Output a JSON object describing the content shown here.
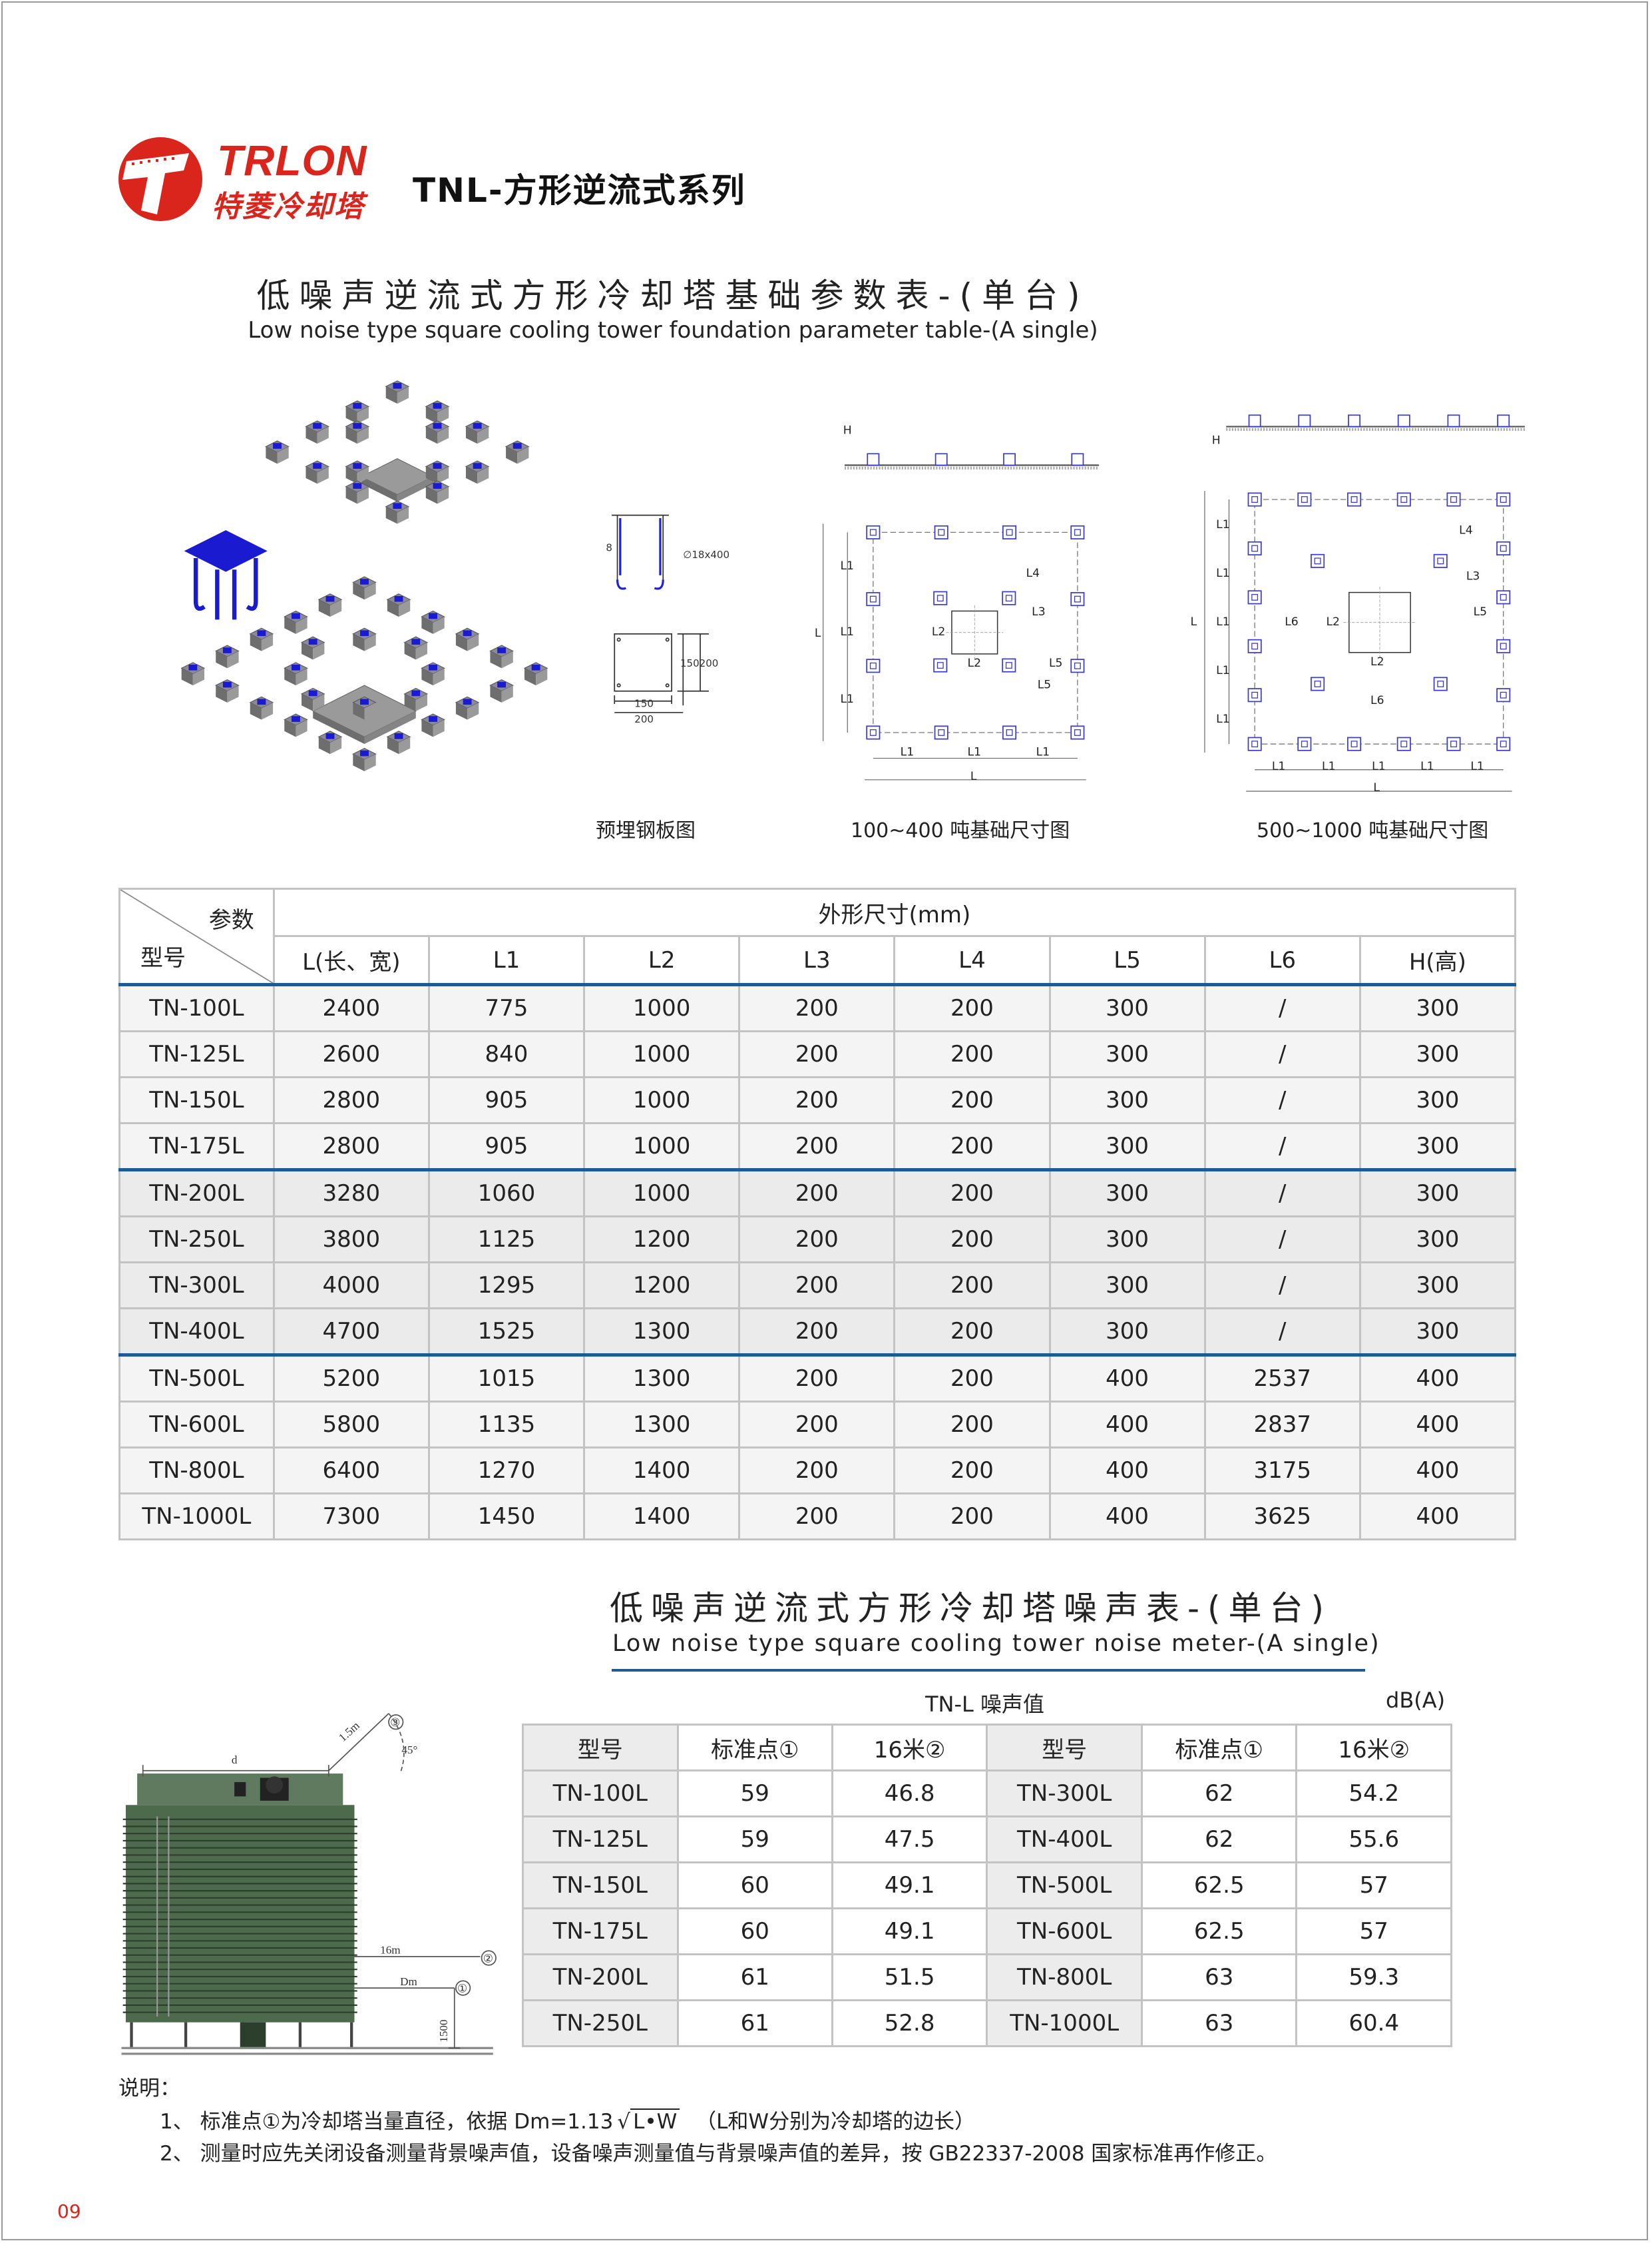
{
  "brand": {
    "name_en": "TRLON",
    "name_cn": "特菱冷却塔",
    "color": "#d9251c"
  },
  "series_title": "TNL-方形逆流式系列",
  "foundation": {
    "title_cn": "低噪声逆流式方形冷却塔基础参数表-(单台)",
    "title_en": "Low noise type square cooling tower  foundation parameter table-(A single)",
    "captions": [
      "预埋钢板图",
      "100~400 吨基础尺寸图",
      "500~1000 吨基础尺寸图"
    ],
    "plate_labels": {
      "phi": "∅18x400",
      "side": "150200",
      "w1": "150",
      "w2": "200",
      "h": "8"
    },
    "plan_labels": {
      "H": "H",
      "L": "L",
      "L1": "L1",
      "L2": "L2",
      "L3": "L3",
      "L4": "L4",
      "L5": "L5",
      "L6": "L6"
    },
    "table": {
      "corner_top": "参数",
      "corner_bottom": "型号",
      "group_header": "外形尺寸(mm)",
      "columns": [
        "L(长、宽)",
        "L1",
        "L2",
        "L3",
        "L4",
        "L5",
        "L6",
        "H(高)"
      ],
      "rows": [
        [
          "TN-100L",
          "2400",
          "775",
          "1000",
          "200",
          "200",
          "300",
          "/",
          "300"
        ],
        [
          "TN-125L",
          "2600",
          "840",
          "1000",
          "200",
          "200",
          "300",
          "/",
          "300"
        ],
        [
          "TN-150L",
          "2800",
          "905",
          "1000",
          "200",
          "200",
          "300",
          "/",
          "300"
        ],
        [
          "TN-175L",
          "2800",
          "905",
          "1000",
          "200",
          "200",
          "300",
          "/",
          "300"
        ],
        [
          "TN-200L",
          "3280",
          "1060",
          "1000",
          "200",
          "200",
          "300",
          "/",
          "300"
        ],
        [
          "TN-250L",
          "3800",
          "1125",
          "1200",
          "200",
          "200",
          "300",
          "/",
          "300"
        ],
        [
          "TN-300L",
          "4000",
          "1295",
          "1200",
          "200",
          "200",
          "300",
          "/",
          "300"
        ],
        [
          "TN-400L",
          "4700",
          "1525",
          "1300",
          "200",
          "200",
          "300",
          "/",
          "300"
        ],
        [
          "TN-500L",
          "5200",
          "1015",
          "1300",
          "200",
          "200",
          "400",
          "2537",
          "400"
        ],
        [
          "TN-600L",
          "5800",
          "1135",
          "1300",
          "200",
          "200",
          "400",
          "2837",
          "400"
        ],
        [
          "TN-800L",
          "6400",
          "1270",
          "1400",
          "200",
          "200",
          "400",
          "3175",
          "400"
        ],
        [
          "TN-1000L",
          "7300",
          "1450",
          "1400",
          "200",
          "200",
          "400",
          "3625",
          "400"
        ]
      ]
    }
  },
  "noise": {
    "title_cn": "低噪声逆流式方形冷却塔噪声表-(单台)",
    "title_en": "Low noise type square cooling tower  noise meter-(A single)",
    "caption": "TN-L 噪声值",
    "unit": "dB(A)",
    "drawing_labels": {
      "d": "d",
      "r": "1.5m",
      "angle": "45°",
      "p3": "③",
      "m16": "16m",
      "p2": "②",
      "dm": "Dm",
      "p1": "①",
      "h": "1500"
    },
    "columns": [
      "型号",
      "标准点①",
      "16米②",
      "型号",
      "标准点①",
      "16米②"
    ],
    "rows": [
      [
        "TN-100L",
        "59",
        "46.8",
        "TN-300L",
        "62",
        "54.2"
      ],
      [
        "TN-125L",
        "59",
        "47.5",
        "TN-400L",
        "62",
        "55.6"
      ],
      [
        "TN-150L",
        "60",
        "49.1",
        "TN-500L",
        "62.5",
        "57"
      ],
      [
        "TN-175L",
        "60",
        "49.1",
        "TN-600L",
        "62.5",
        "57"
      ],
      [
        "TN-200L",
        "61",
        "51.5",
        "TN-800L",
        "63",
        "59.3"
      ],
      [
        "TN-250L",
        "61",
        "52.8",
        "TN-1000L",
        "63",
        "60.4"
      ]
    ]
  },
  "notes": {
    "heading": "说明：",
    "line1_pre": "1、 标准点①为冷却塔当量直径，依据 Dm=1.13",
    "line1_sqrt": "L•W",
    "line1_post": "（L和W分别为冷却塔的边长）",
    "line2": "2、 测量时应先关闭设备测量背景噪声值，设备噪声测量值与背景噪声值的差异，按 GB22337-2008 国家标准再作修正。"
  },
  "page_number": "09",
  "colors": {
    "accent_blue": "#1f5a94",
    "pad_blue": "#1a1ad0",
    "tower_green": "#4d6a4d"
  }
}
